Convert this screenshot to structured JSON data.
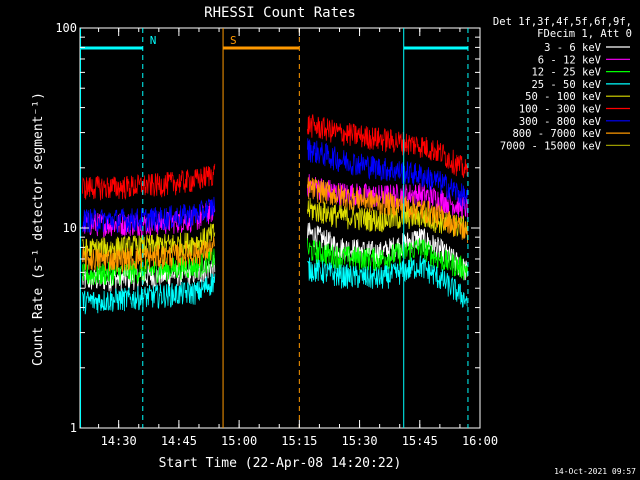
{
  "chart_data": {
    "type": "line",
    "title": "RHESSI Count Rates",
    "xlabel": "Start Time (22-Apr-08 14:20:22)",
    "ylabel": "Count Rate (s⁻¹ detector segment⁻¹)",
    "yscale": "log",
    "ylim": [
      1,
      100
    ],
    "xlim": [
      "14:20:22",
      "16:00:00"
    ],
    "x_tick_labels": [
      "14:30",
      "14:45",
      "15:00",
      "15:15",
      "15:30",
      "15:45",
      "16:00"
    ],
    "y_tick_labels": [
      "1",
      "10",
      "100"
    ],
    "legend_header": [
      "Det 1f,3f,4f,5f,6f,9f,",
      "FDecim 1, Att 0"
    ],
    "legend_placement": "right",
    "data_gap": [
      "14:54",
      "15:17"
    ],
    "series": [
      {
        "name": "3 - 6 keV",
        "color": "#ffffff",
        "x": [
          "14:21",
          "14:30",
          "14:40",
          "14:50",
          "14:54",
          "15:17",
          "15:25",
          "15:35",
          "15:40",
          "15:45",
          "15:50",
          "15:57"
        ],
        "values": [
          5.5,
          5.6,
          5.8,
          6.0,
          6.5,
          9.5,
          8.0,
          7.5,
          8.2,
          9.0,
          7.8,
          6.0
        ]
      },
      {
        "name": "6 - 12 keV",
        "color": "#ff00ff",
        "x": [
          "14:21",
          "14:30",
          "14:40",
          "14:50",
          "14:54",
          "15:17",
          "15:25",
          "15:35",
          "15:45",
          "15:50",
          "15:57"
        ],
        "values": [
          10.5,
          10.5,
          10.6,
          11.2,
          12.5,
          16.5,
          15.0,
          14.5,
          14.8,
          14.0,
          12.5
        ]
      },
      {
        "name": "12 - 25 keV",
        "color": "#00ff00",
        "x": [
          "14:21",
          "14:30",
          "14:40",
          "14:50",
          "14:54",
          "15:17",
          "15:25",
          "15:35",
          "15:40",
          "15:45",
          "15:50",
          "15:57"
        ],
        "values": [
          5.8,
          6.0,
          6.2,
          6.5,
          7.2,
          7.8,
          7.2,
          7.0,
          7.5,
          8.0,
          7.0,
          6.2
        ]
      },
      {
        "name": "25 - 50 keV",
        "color": "#00ffff",
        "x": [
          "14:21",
          "14:30",
          "14:40",
          "14:50",
          "14:54",
          "15:17",
          "15:25",
          "15:35",
          "15:40",
          "15:45",
          "15:50",
          "15:57"
        ],
        "values": [
          4.3,
          4.4,
          4.6,
          4.8,
          5.5,
          6.3,
          5.8,
          5.6,
          6.0,
          6.5,
          5.6,
          4.3
        ]
      },
      {
        "name": "50 - 100 keV",
        "color": "#dddd00",
        "x": [
          "14:21",
          "14:30",
          "14:40",
          "14:50",
          "14:54",
          "15:17",
          "15:25",
          "15:35",
          "15:45",
          "15:50",
          "15:57"
        ],
        "values": [
          7.8,
          8.0,
          8.2,
          8.5,
          9.5,
          12.5,
          11.5,
          11.0,
          11.5,
          10.8,
          10.0
        ]
      },
      {
        "name": "100 - 300 keV",
        "color": "#ff0000",
        "x": [
          "14:21",
          "14:30",
          "14:40",
          "14:50",
          "14:54",
          "15:17",
          "15:25",
          "15:35",
          "15:45",
          "15:50",
          "15:57"
        ],
        "values": [
          16.0,
          16.0,
          16.5,
          17.5,
          19.0,
          33.0,
          30.0,
          28.0,
          26.0,
          24.0,
          19.0
        ]
      },
      {
        "name": "300 - 800 keV",
        "color": "#0000ff",
        "x": [
          "14:21",
          "14:30",
          "14:40",
          "14:50",
          "14:54",
          "15:17",
          "15:25",
          "15:35",
          "15:45",
          "15:50",
          "15:57"
        ],
        "values": [
          11.0,
          11.0,
          11.2,
          11.8,
          13.0,
          25.0,
          22.0,
          20.0,
          18.5,
          17.0,
          14.0
        ]
      },
      {
        "name": "800 - 7000 keV",
        "color": "#ff9900",
        "x": [
          "14:21",
          "14:30",
          "14:40",
          "14:50",
          "14:54",
          "15:17",
          "15:25",
          "15:35",
          "15:45",
          "15:50",
          "15:57"
        ],
        "values": [
          7.0,
          7.0,
          7.2,
          7.5,
          8.0,
          16.0,
          14.5,
          13.5,
          12.5,
          11.5,
          9.5
        ]
      },
      {
        "name": "7000 - 15000 keV",
        "color": "#999900",
        "x": [],
        "values": []
      }
    ],
    "attenuator_bars": [
      {
        "color": "#00ffff",
        "label": "",
        "start": "14:20:22",
        "end": "14:36"
      },
      {
        "color": "#ff9900",
        "label": "",
        "start": "14:56",
        "end": "15:15"
      },
      {
        "color": "#00ffff",
        "label": "",
        "start": "15:41",
        "end": "15:57"
      }
    ],
    "markers": [
      {
        "label": "N",
        "time": "14:36",
        "color": "#00ffff"
      },
      {
        "label": "S",
        "time": "14:56",
        "color": "#ff9900"
      }
    ],
    "vertical_lines": [
      {
        "time": "14:20:30",
        "color": "#00ffff",
        "style": "solid"
      },
      {
        "time": "14:36",
        "color": "#00ffff",
        "style": "dashed"
      },
      {
        "time": "14:56",
        "color": "#ff9900",
        "style": "solid"
      },
      {
        "time": "15:15",
        "color": "#ff9900",
        "style": "dashed"
      },
      {
        "time": "15:41",
        "color": "#00ffff",
        "style": "solid"
      },
      {
        "time": "15:57",
        "color": "#00ffff",
        "style": "dashed"
      }
    ]
  },
  "timestamp": "14-Oct-2021 09:57"
}
